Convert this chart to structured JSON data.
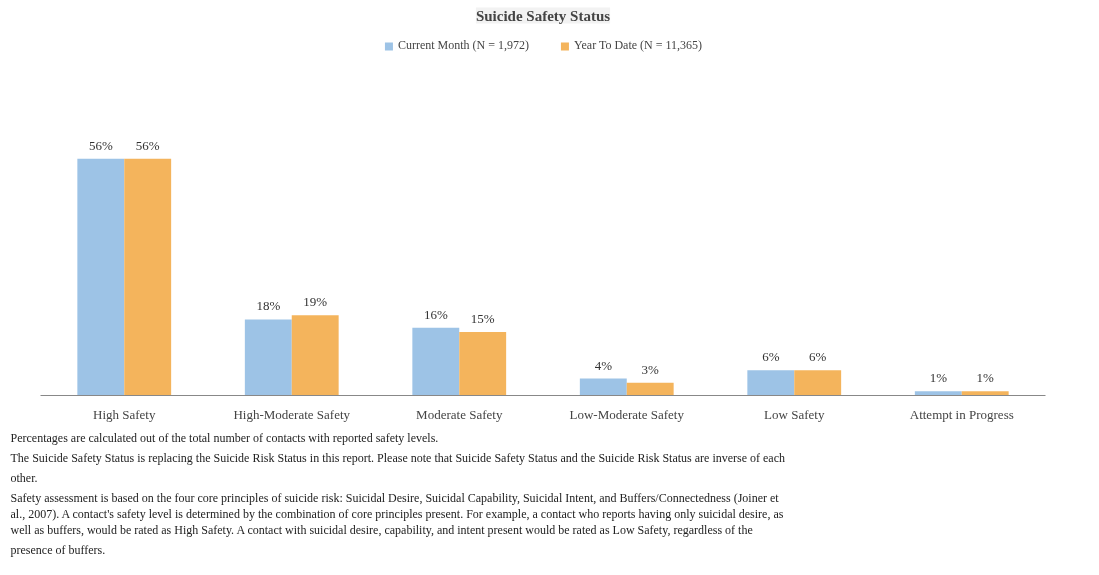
{
  "chart_data": {
    "type": "bar",
    "title": "Suicide Safety Status",
    "categories": [
      "High Safety",
      "High-Moderate Safety",
      "Moderate Safety",
      "Low-Moderate Safety",
      "Low Safety",
      "Attempt in Progress"
    ],
    "series": [
      {
        "name": "Current Month (N = 1,972)",
        "color": "#9dc3e6",
        "values": [
          56,
          18,
          16,
          4,
          6,
          1
        ],
        "value_labels": [
          "56%",
          "18%",
          "16%",
          "4%",
          "6%",
          "1%"
        ]
      },
      {
        "name": "Year To Date (N = 11,365)",
        "color": "#f4b45c",
        "values": [
          56,
          19,
          15,
          3,
          6,
          1
        ],
        "value_labels": [
          "56%",
          "19%",
          "15%",
          "3%",
          "6%",
          "1%"
        ]
      }
    ],
    "legend": "top",
    "annotations": [
      "Percentages are calculated out of the total number of contacts with reported safety levels.",
      "The Suicide Safety Status is replacing the Suicide Risk Status in this report. Please note that Suicide Safety Status and the Suicide Risk Status are inverse of each other.",
      "Safety assessment is based on the four core principles of suicide risk: Suicidal Desire, Suicidal Capability, Suicidal Intent, and Buffers/Connectedness (Joiner et al., 2007).  A contact's safety level is determined by the combination of core principles present. For example, a contact who reports having only suicidal desire, as well as buffers, would be rated as High Safety. A contact with suicidal desire, capability, and intent present would be rated as Low Safety, regardless of the presence of buffers."
    ]
  }
}
